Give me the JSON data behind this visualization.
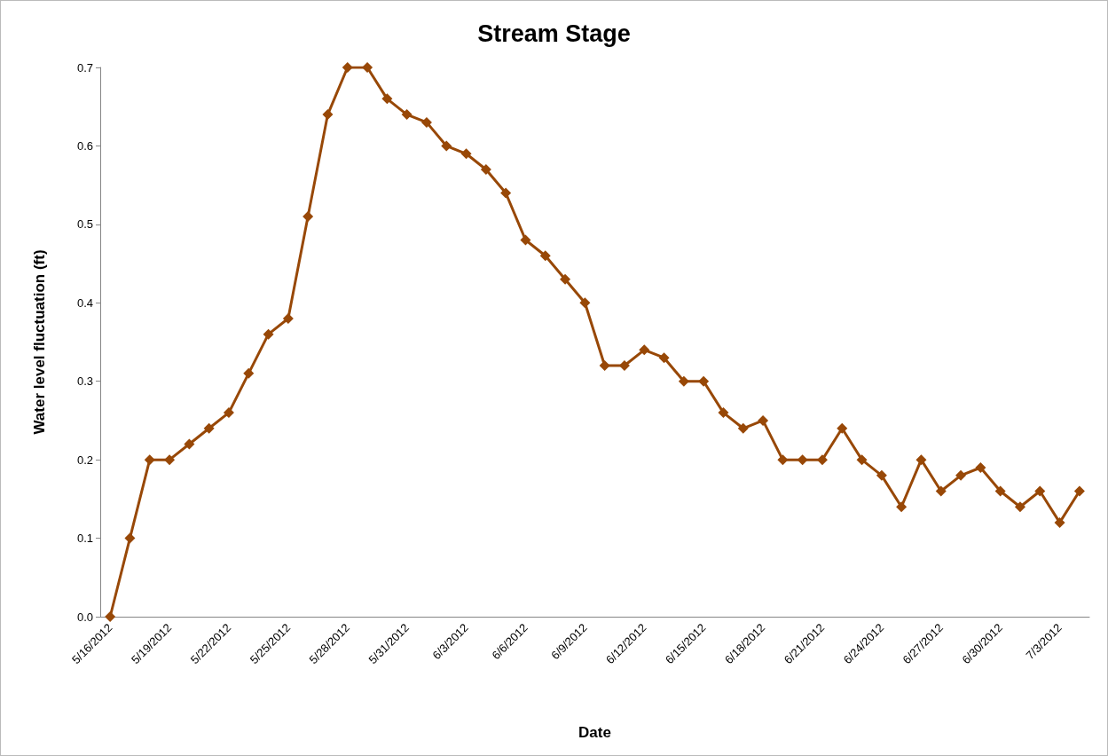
{
  "chart_data": {
    "type": "line",
    "title": "Stream Stage",
    "xlabel": "Date",
    "ylabel": "Water level fluctuation (ft)",
    "categories": [
      "5/16/2012",
      null,
      null,
      "5/19/2012",
      null,
      null,
      "5/22/2012",
      null,
      null,
      "5/25/2012",
      null,
      null,
      "5/28/2012",
      null,
      null,
      "5/31/2012",
      null,
      null,
      "6/3/2012",
      null,
      null,
      "6/6/2012",
      null,
      null,
      "6/9/2012",
      null,
      null,
      "6/12/2012",
      null,
      null,
      "6/15/2012",
      null,
      null,
      "6/18/2012",
      null,
      null,
      "6/21/2012",
      null,
      null,
      "6/24/2012",
      null,
      null,
      "6/27/2012",
      null,
      null,
      "6/30/2012",
      null,
      null,
      "7/3/2012",
      null
    ],
    "series": [
      {
        "color": "#984807",
        "values": [
          0,
          0.1,
          0.2,
          0.2,
          0.22,
          0.24,
          0.26,
          0.31,
          0.36,
          0.38,
          0.51,
          0.64,
          0.7,
          0.7,
          0.66,
          0.64,
          0.63,
          0.6,
          0.59,
          0.57,
          0.54,
          0.48,
          0.46,
          0.43,
          0.4,
          0.32,
          0.32,
          0.34,
          0.33,
          0.3,
          0.3,
          0.26,
          0.24,
          0.25,
          0.2,
          0.2,
          0.2,
          0.24,
          0.2,
          0.18,
          0.14,
          0.2,
          0.16,
          0.18,
          0.19,
          0.16,
          0.14,
          0.16,
          0.12,
          0.16
        ]
      }
    ],
    "ylim": [
      0,
      0.7
    ],
    "yticks": [
      {
        "value": 0,
        "label": "0.0"
      },
      0.1,
      0.2,
      0.3,
      0.4,
      0.5,
      0.6,
      0.7
    ],
    "grid": false,
    "marker": "diamond",
    "line_style": "solid"
  }
}
